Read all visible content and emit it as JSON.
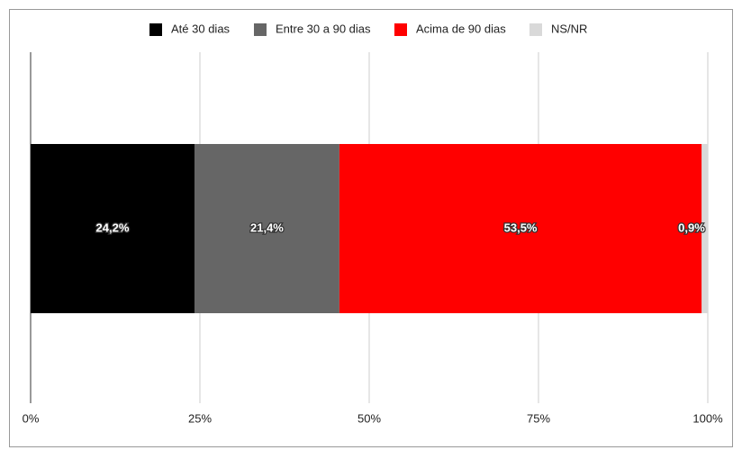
{
  "chart_data": {
    "type": "stacked-bar-horizontal",
    "categories": [
      null
    ],
    "series": [
      {
        "name": "Até 30 dias",
        "color": "#000000",
        "values": [
          24.2
        ],
        "value_labels": [
          "24,2%"
        ]
      },
      {
        "name": "Entre 30 a 90 dias",
        "color": "#666666",
        "values": [
          21.4
        ],
        "value_labels": [
          "21,4%"
        ]
      },
      {
        "name": "Acima de 90 dias",
        "color": "#ff0000",
        "values": [
          53.5
        ],
        "value_labels": [
          "53,5%"
        ]
      },
      {
        "name": "NS/NR",
        "color": "#d9d9d9",
        "values": [
          0.9
        ],
        "value_labels": [
          "0,9%"
        ]
      }
    ],
    "xlim": [
      0,
      100
    ],
    "xticks": [
      {
        "value": 0,
        "label": "0%"
      },
      {
        "value": 25,
        "label": "25%"
      },
      {
        "value": 50,
        "label": "50%"
      },
      {
        "value": 75,
        "label": "75%"
      },
      {
        "value": 100,
        "label": "100%"
      }
    ],
    "grid": true,
    "legend": "top"
  }
}
